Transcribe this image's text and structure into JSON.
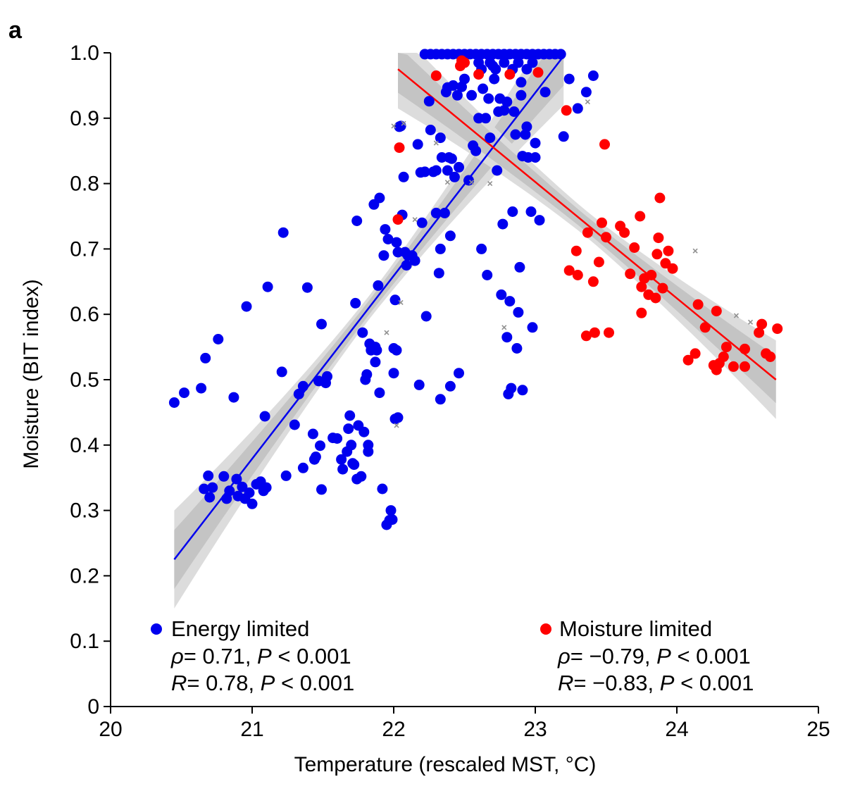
{
  "chart_data": {
    "type": "scatter",
    "panel_label": "a",
    "xlabel": "Temperature (rescaled MST, °C)",
    "ylabel": "Moisture (BIT index)",
    "xlim": [
      20,
      25
    ],
    "ylim": [
      0,
      1.0
    ],
    "x_ticks": [
      "20",
      "21",
      "22",
      "23",
      "24",
      "25"
    ],
    "y_ticks": [
      "0",
      "0.1",
      "0.2",
      "0.3",
      "0.4",
      "0.5",
      "0.6",
      "0.7",
      "0.8",
      "0.9",
      "1.0"
    ],
    "grid": false,
    "legend_position": "bottom",
    "colors": {
      "energy": "#0000ee",
      "moisture": "#ff0000",
      "excluded": "#909090",
      "band": "#c8c8c8"
    },
    "series": [
      {
        "name": "Energy limited",
        "color": "#0000ee",
        "stats": {
          "rho_label": "ρ",
          "rho": "= 0.71, ",
          "p_label": "P",
          "p": " < 0.001",
          "r_label": "R",
          "r": "= 0.78, ",
          "p2_label": "P",
          "p2": " < 0.001"
        },
        "fit": {
          "x": [
            20.45,
            23.2
          ],
          "y": [
            0.225,
            0.995
          ]
        },
        "points": [
          [
            20.45,
            0.465
          ],
          [
            20.52,
            0.48
          ],
          [
            20.64,
            0.487
          ],
          [
            20.67,
            0.533
          ],
          [
            20.76,
            0.562
          ],
          [
            20.66,
            0.333
          ],
          [
            20.69,
            0.353
          ],
          [
            20.7,
            0.32
          ],
          [
            20.72,
            0.335
          ],
          [
            20.8,
            0.352
          ],
          [
            20.82,
            0.318
          ],
          [
            20.84,
            0.33
          ],
          [
            20.87,
            0.473
          ],
          [
            20.89,
            0.348
          ],
          [
            20.9,
            0.322
          ],
          [
            20.93,
            0.336
          ],
          [
            20.95,
            0.318
          ],
          [
            20.96,
            0.612
          ],
          [
            20.98,
            0.327
          ],
          [
            21.0,
            0.31
          ],
          [
            21.03,
            0.34
          ],
          [
            21.06,
            0.344
          ],
          [
            21.08,
            0.33
          ],
          [
            21.1,
            0.335
          ],
          [
            21.09,
            0.444
          ],
          [
            21.11,
            0.642
          ],
          [
            21.21,
            0.512
          ],
          [
            21.22,
            0.725
          ],
          [
            21.24,
            0.353
          ],
          [
            21.3,
            0.431
          ],
          [
            21.33,
            0.478
          ],
          [
            21.36,
            0.49
          ],
          [
            21.36,
            0.365
          ],
          [
            21.39,
            0.641
          ],
          [
            21.43,
            0.417
          ],
          [
            21.44,
            0.378
          ],
          [
            21.45,
            0.382
          ],
          [
            21.47,
            0.498
          ],
          [
            21.48,
            0.399
          ],
          [
            21.49,
            0.585
          ],
          [
            21.49,
            0.332
          ],
          [
            21.52,
            0.495
          ],
          [
            21.53,
            0.505
          ],
          [
            21.57,
            0.411
          ],
          [
            21.6,
            0.41
          ],
          [
            21.63,
            0.378
          ],
          [
            21.64,
            0.363
          ],
          [
            21.67,
            0.39
          ],
          [
            21.68,
            0.425
          ],
          [
            21.69,
            0.445
          ],
          [
            21.7,
            0.4
          ],
          [
            21.71,
            0.372
          ],
          [
            21.72,
            0.37
          ],
          [
            21.73,
            0.617
          ],
          [
            21.74,
            0.743
          ],
          [
            21.74,
            0.348
          ],
          [
            21.75,
            0.43
          ],
          [
            21.77,
            0.352
          ],
          [
            21.78,
            0.572
          ],
          [
            21.79,
            0.42
          ],
          [
            21.8,
            0.5
          ],
          [
            21.81,
            0.508
          ],
          [
            21.82,
            0.4
          ],
          [
            21.82,
            0.39
          ],
          [
            21.83,
            0.555
          ],
          [
            21.84,
            0.545
          ],
          [
            21.86,
            0.768
          ],
          [
            21.87,
            0.55
          ],
          [
            21.87,
            0.527
          ],
          [
            21.88,
            0.545
          ],
          [
            21.89,
            0.644
          ],
          [
            21.9,
            0.778
          ],
          [
            21.9,
            0.48
          ],
          [
            21.92,
            0.333
          ],
          [
            21.93,
            0.69
          ],
          [
            21.94,
            0.73
          ],
          [
            21.95,
            0.278
          ],
          [
            21.96,
            0.715
          ],
          [
            21.97,
            0.285
          ],
          [
            21.98,
            0.3
          ],
          [
            21.99,
            0.286
          ],
          [
            22.0,
            0.51
          ],
          [
            22.0,
            0.548
          ],
          [
            22.01,
            0.622
          ],
          [
            22.01,
            0.44
          ],
          [
            22.02,
            0.545
          ],
          [
            22.02,
            0.71
          ],
          [
            22.03,
            0.695
          ],
          [
            22.03,
            0.442
          ],
          [
            22.04,
            0.887
          ],
          [
            22.05,
            0.888
          ],
          [
            22.06,
            0.752
          ],
          [
            22.07,
            0.81
          ],
          [
            22.08,
            0.695
          ],
          [
            22.09,
            0.675
          ],
          [
            22.1,
            0.69
          ],
          [
            22.13,
            0.69
          ],
          [
            22.15,
            0.682
          ],
          [
            22.17,
            0.86
          ],
          [
            22.18,
            0.492
          ],
          [
            22.19,
            0.817
          ],
          [
            22.2,
            0.74
          ],
          [
            22.22,
            0.818
          ],
          [
            22.23,
            0.597
          ],
          [
            22.25,
            0.926
          ],
          [
            22.26,
            0.882
          ],
          [
            22.28,
            0.818
          ],
          [
            22.3,
            0.755
          ],
          [
            22.3,
            0.82
          ],
          [
            22.32,
            0.663
          ],
          [
            22.33,
            0.47
          ],
          [
            22.33,
            0.7
          ],
          [
            22.33,
            0.87
          ],
          [
            22.34,
            0.84
          ],
          [
            22.36,
            0.755
          ],
          [
            22.37,
            0.94
          ],
          [
            22.38,
            0.947
          ],
          [
            22.38,
            0.82
          ],
          [
            22.39,
            0.84
          ],
          [
            22.4,
            0.72
          ],
          [
            22.4,
            0.49
          ],
          [
            22.41,
            0.838
          ],
          [
            22.42,
            0.95
          ],
          [
            22.43,
            0.81
          ],
          [
            22.45,
            0.935
          ],
          [
            22.46,
            0.51
          ],
          [
            22.46,
            0.825
          ],
          [
            22.48,
            0.948
          ],
          [
            22.5,
            0.96
          ],
          [
            22.53,
            0.805
          ],
          [
            22.55,
            0.935
          ],
          [
            22.56,
            0.858
          ],
          [
            22.58,
            0.85
          ],
          [
            22.6,
            0.9
          ],
          [
            22.62,
            0.975
          ],
          [
            22.62,
            0.7
          ],
          [
            22.63,
            0.945
          ],
          [
            22.65,
            0.9
          ],
          [
            22.66,
            0.66
          ],
          [
            22.67,
            0.93
          ],
          [
            22.68,
            0.87
          ],
          [
            22.7,
            0.98
          ],
          [
            22.71,
            0.96
          ],
          [
            22.73,
            0.82
          ],
          [
            22.74,
            0.91
          ],
          [
            22.75,
            0.93
          ],
          [
            22.76,
            0.63
          ],
          [
            22.77,
            0.738
          ],
          [
            22.78,
            0.912
          ],
          [
            22.8,
            0.925
          ],
          [
            22.8,
            0.565
          ],
          [
            22.81,
            0.478
          ],
          [
            22.82,
            0.62
          ],
          [
            22.83,
            0.487
          ],
          [
            22.84,
            0.757
          ],
          [
            22.85,
            0.91
          ],
          [
            22.86,
            0.875
          ],
          [
            22.87,
            0.548
          ],
          [
            22.88,
            0.603
          ],
          [
            22.89,
            0.672
          ],
          [
            22.9,
            0.955
          ],
          [
            22.9,
            0.935
          ],
          [
            22.91,
            0.842
          ],
          [
            22.91,
            0.484
          ],
          [
            22.93,
            0.875
          ],
          [
            22.94,
            0.887
          ],
          [
            22.95,
            0.84
          ],
          [
            22.97,
            0.757
          ],
          [
            22.98,
            0.58
          ],
          [
            23.0,
            0.84
          ],
          [
            23.0,
            0.862
          ],
          [
            23.03,
            0.744
          ],
          [
            23.07,
            0.94
          ],
          [
            23.2,
            0.872
          ],
          [
            23.24,
            0.96
          ],
          [
            23.3,
            0.915
          ],
          [
            23.36,
            0.94
          ],
          [
            23.41,
            0.965
          ],
          [
            22.22,
            0.998
          ],
          [
            22.26,
            0.998
          ],
          [
            22.3,
            0.998
          ],
          [
            22.34,
            0.998
          ],
          [
            22.38,
            0.998
          ],
          [
            22.42,
            0.998
          ],
          [
            22.46,
            0.998
          ],
          [
            22.5,
            0.998
          ],
          [
            22.54,
            0.998
          ],
          [
            22.58,
            0.998
          ],
          [
            22.62,
            0.998
          ],
          [
            22.66,
            0.998
          ],
          [
            22.7,
            0.998
          ],
          [
            22.74,
            0.998
          ],
          [
            22.78,
            0.998
          ],
          [
            22.82,
            0.998
          ],
          [
            22.86,
            0.998
          ],
          [
            22.9,
            0.998
          ],
          [
            22.94,
            0.998
          ],
          [
            22.98,
            0.998
          ],
          [
            23.02,
            0.998
          ],
          [
            23.06,
            0.998
          ],
          [
            23.1,
            0.998
          ],
          [
            23.14,
            0.998
          ],
          [
            23.18,
            0.998
          ],
          [
            22.6,
            0.985
          ],
          [
            22.68,
            0.985
          ],
          [
            22.78,
            0.985
          ],
          [
            22.88,
            0.985
          ],
          [
            22.98,
            0.985
          ],
          [
            22.72,
            0.975
          ],
          [
            22.84,
            0.975
          ],
          [
            22.94,
            0.975
          ]
        ]
      },
      {
        "name": "Moisture limited",
        "color": "#ff0000",
        "stats": {
          "rho_label": "ρ",
          "rho": "= −0.79, ",
          "p_label": "P",
          "p": " < 0.001",
          "r_label": "R",
          "r": "= −0.83, ",
          "p2_label": "P",
          "p2": " < 0.001"
        },
        "fit": {
          "x": [
            22.03,
            24.7
          ],
          "y": [
            0.975,
            0.5
          ]
        },
        "points": [
          [
            22.03,
            0.745
          ],
          [
            22.04,
            0.855
          ],
          [
            22.3,
            0.965
          ],
          [
            22.47,
            0.98
          ],
          [
            22.48,
            0.988
          ],
          [
            22.5,
            0.985
          ],
          [
            22.6,
            0.967
          ],
          [
            22.82,
            0.967
          ],
          [
            23.02,
            0.97
          ],
          [
            23.22,
            0.912
          ],
          [
            23.24,
            0.667
          ],
          [
            23.29,
            0.697
          ],
          [
            23.3,
            0.66
          ],
          [
            23.36,
            0.567
          ],
          [
            23.37,
            0.725
          ],
          [
            23.41,
            0.65
          ],
          [
            23.42,
            0.572
          ],
          [
            23.45,
            0.68
          ],
          [
            23.47,
            0.74
          ],
          [
            23.49,
            0.86
          ],
          [
            23.5,
            0.718
          ],
          [
            23.52,
            0.572
          ],
          [
            23.6,
            0.735
          ],
          [
            23.63,
            0.725
          ],
          [
            23.67,
            0.662
          ],
          [
            23.7,
            0.702
          ],
          [
            23.74,
            0.75
          ],
          [
            23.75,
            0.642
          ],
          [
            23.75,
            0.602
          ],
          [
            23.77,
            0.655
          ],
          [
            23.8,
            0.63
          ],
          [
            23.82,
            0.66
          ],
          [
            23.85,
            0.625
          ],
          [
            23.86,
            0.692
          ],
          [
            23.87,
            0.717
          ],
          [
            23.88,
            0.778
          ],
          [
            23.9,
            0.64
          ],
          [
            23.92,
            0.678
          ],
          [
            23.94,
            0.697
          ],
          [
            23.97,
            0.67
          ],
          [
            24.08,
            0.53
          ],
          [
            24.13,
            0.54
          ],
          [
            24.15,
            0.615
          ],
          [
            24.2,
            0.58
          ],
          [
            24.26,
            0.522
          ],
          [
            24.28,
            0.515
          ],
          [
            24.28,
            0.605
          ],
          [
            24.3,
            0.525
          ],
          [
            24.33,
            0.535
          ],
          [
            24.35,
            0.55
          ],
          [
            24.4,
            0.52
          ],
          [
            24.48,
            0.547
          ],
          [
            24.48,
            0.52
          ],
          [
            24.58,
            0.572
          ],
          [
            24.6,
            0.585
          ],
          [
            24.63,
            0.54
          ],
          [
            24.66,
            0.535
          ],
          [
            24.71,
            0.578
          ]
        ]
      },
      {
        "name": "",
        "color": "#909090",
        "marker": "x",
        "points": [
          [
            22.0,
            0.888
          ],
          [
            22.07,
            0.892
          ],
          [
            22.15,
            0.745
          ],
          [
            22.3,
            0.862
          ],
          [
            22.38,
            0.802
          ],
          [
            22.55,
            0.802
          ],
          [
            22.68,
            0.8
          ],
          [
            22.78,
            0.58
          ],
          [
            23.37,
            0.925
          ],
          [
            24.13,
            0.697
          ],
          [
            24.42,
            0.598
          ],
          [
            24.52,
            0.588
          ],
          [
            21.95,
            0.572
          ],
          [
            22.05,
            0.618
          ],
          [
            22.02,
            0.43
          ]
        ]
      }
    ]
  }
}
